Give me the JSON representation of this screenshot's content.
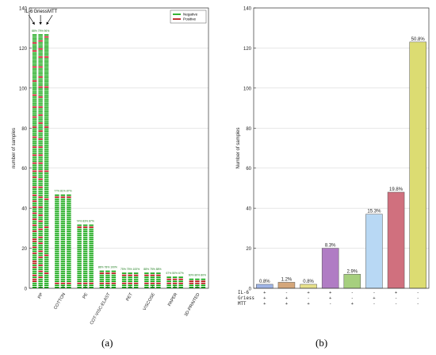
{
  "chart_data": [
    {
      "type": "bar",
      "panel_label": "(a)",
      "ylabel": "number of samples",
      "ylim": [
        0,
        140
      ],
      "yticks": [
        0,
        20,
        40,
        60,
        80,
        100,
        120,
        140
      ],
      "grid": true,
      "legend": {
        "placement": "top-right",
        "entries": [
          "Negative",
          "Positive"
        ]
      },
      "colors": {
        "negative": "#00a000",
        "positive": "#b00000"
      },
      "categories": [
        "PP",
        "COTTON",
        "PE",
        "COT-VISC-ELAST",
        "PET",
        "VISCOSE",
        "PAPER",
        "3D-PRINTED"
      ],
      "test_labels": [
        "IL-6",
        "Griess",
        "MTT"
      ],
      "series": [
        {
          "name": "IL-6",
          "values": [
            127,
            47,
            32,
            9,
            8,
            8,
            6,
            5
          ]
        },
        {
          "name": "Griess",
          "values": [
            127,
            47,
            32,
            9,
            8,
            8,
            6,
            5
          ]
        },
        {
          "name": "MTT",
          "values": [
            127,
            47,
            32,
            9,
            8,
            8,
            6,
            5
          ]
        }
      ],
      "pct_labels": [
        "88% 79% 96%",
        "77% 81% 87%",
        "74% 83% 87%",
        "88% 78% 100%",
        "75% 75% 100%",
        "88% 75% 88%",
        "67% 50% 67%",
        "60% 80% 80%"
      ],
      "positive_rows": [
        [
          [
            3,
            4
          ],
          [
            6
          ],
          [
            10
          ],
          [
            12,
            13
          ],
          [
            17
          ],
          [
            20
          ],
          [
            23,
            24
          ],
          [
            28
          ],
          [
            31
          ],
          [
            34
          ],
          [
            37
          ],
          [
            40
          ],
          [
            43
          ],
          [
            46
          ],
          [
            50
          ],
          [
            55
          ],
          [
            58
          ],
          [
            62
          ],
          [
            66
          ],
          [
            70
          ],
          [
            75
          ],
          [
            80
          ],
          [
            85
          ],
          [
            90
          ],
          [
            96
          ],
          [
            103
          ],
          [
            110
          ],
          [
            118
          ],
          [
            122
          ]
        ],
        [
          [
            5
          ],
          [
            8
          ],
          [
            11
          ],
          [
            15
          ],
          [
            18
          ],
          [
            22
          ],
          [
            25
          ],
          [
            29
          ],
          [
            33
          ],
          [
            36
          ],
          [
            40
          ],
          [
            45
          ],
          [
            50
          ],
          [
            54
          ],
          [
            58
          ],
          [
            62
          ],
          [
            66
          ],
          [
            70
          ],
          [
            74
          ],
          [
            78
          ],
          [
            82
          ],
          [
            86
          ],
          [
            90
          ],
          [
            95
          ],
          [
            100
          ],
          [
            105
          ],
          [
            110
          ],
          [
            115
          ],
          [
            119
          ],
          [
            123
          ]
        ],
        [
          [
            7
          ],
          [
            16
          ],
          [
            30
          ],
          [
            44
          ],
          [
            58
          ],
          [
            80
          ],
          [
            100
          ],
          [
            115
          ],
          [
            125
          ]
        ]
      ]
    },
    {
      "type": "bar",
      "panel_label": "(b)",
      "ylabel": "Number of samples",
      "ylim": [
        0,
        140
      ],
      "yticks": [
        0,
        20,
        40,
        60,
        80,
        100,
        120,
        140
      ],
      "grid": true,
      "values": [
        2,
        3,
        2,
        20,
        7,
        37,
        48,
        123
      ],
      "data_labels": [
        "0.8%",
        "1.2%",
        "0.8%",
        "8.3%",
        "2.9%",
        "15.3%",
        "19.8%",
        "50.8%"
      ],
      "bar_colors": [
        "#9eb4e6",
        "#d4a67a",
        "#e6e08a",
        "#b07cc4",
        "#a6cf7e",
        "#b8d8f4",
        "#d0707e",
        "#dcdc72"
      ],
      "row_labels": [
        "IL-6",
        "Griess",
        "MTT"
      ],
      "row_values": [
        [
          "+",
          "-",
          "+",
          "+",
          "-",
          "-",
          "+",
          "-"
        ],
        [
          "+",
          "+",
          "-",
          "+",
          "-",
          "+",
          "-",
          "-"
        ],
        [
          "+",
          "+",
          "+",
          "-",
          "+",
          "-",
          "-",
          "-"
        ]
      ]
    }
  ]
}
